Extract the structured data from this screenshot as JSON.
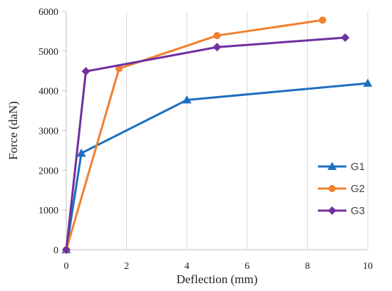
{
  "chart_data": {
    "type": "line",
    "title": "",
    "xlabel": "Deflection (mm)",
    "ylabel": "Force (daN)",
    "xlim": [
      0,
      10
    ],
    "ylim": [
      0,
      6000
    ],
    "x_ticks": [
      "0",
      "2",
      "4",
      "6",
      "8",
      "10"
    ],
    "y_ticks": [
      "0",
      "1000",
      "2000",
      "3000",
      "4000",
      "5000",
      "6000"
    ],
    "grid": "vertical",
    "legend_position": "right",
    "series": [
      {
        "name": "G1",
        "color": "#1f6fc0",
        "marker": "triangle",
        "points": [
          {
            "x": 0,
            "y": 0
          },
          {
            "x": 0.5,
            "y": 2430
          },
          {
            "x": 4.0,
            "y": 3770
          },
          {
            "x": 10.0,
            "y": 4190
          }
        ]
      },
      {
        "name": "G2",
        "color": "#f0812e",
        "marker": "circle",
        "points": [
          {
            "x": 0,
            "y": 0
          },
          {
            "x": 1.75,
            "y": 4560
          },
          {
            "x": 5.0,
            "y": 5390
          },
          {
            "x": 8.5,
            "y": 5780
          }
        ]
      },
      {
        "name": "G3",
        "color": "#7030a0",
        "marker": "diamond",
        "points": [
          {
            "x": 0,
            "y": 0
          },
          {
            "x": 0.65,
            "y": 4490
          },
          {
            "x": 5.0,
            "y": 5100
          },
          {
            "x": 9.25,
            "y": 5340
          }
        ]
      }
    ]
  }
}
